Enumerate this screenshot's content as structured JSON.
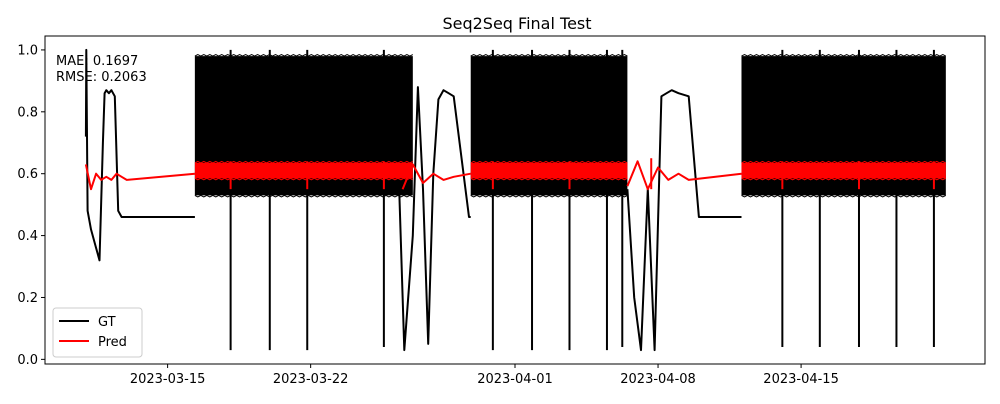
{
  "chart_data": {
    "type": "line",
    "title": "Seq2Seq Final Test",
    "xlabel": "",
    "ylabel": "",
    "xlim": [
      "2023-03-09",
      "2023-04-24"
    ],
    "ylim": [
      -0.015,
      1.045
    ],
    "xticks": [
      "2023-03-15",
      "2023-03-22",
      "2023-04-01",
      "2023-04-08",
      "2023-04-15"
    ],
    "yticks": [
      0.0,
      0.2,
      0.4,
      0.6,
      0.8,
      1.0
    ],
    "ytick_labels": [
      "0.0",
      "0.2",
      "0.4",
      "0.6",
      "0.8",
      "1.0"
    ],
    "grid": false,
    "legend": {
      "position": "lower-left",
      "entries": [
        "GT",
        "Pred"
      ]
    },
    "annotation": [
      "MAE: 0.1697",
      "RMSE: 0.2063"
    ],
    "series": [
      {
        "name": "GT",
        "color": "#000000",
        "segments": [
          {
            "kind": "line",
            "x": [
              "2023-03-11T00:00",
              "2023-03-11T00:30",
              "2023-03-11T02:00",
              "2023-03-11T06:00",
              "2023-03-11T12:00",
              "2023-03-11T16:00",
              "2023-03-11T20:00",
              "2023-03-11T22:00",
              "2023-03-12T00:00",
              "2023-03-12T03:00",
              "2023-03-12T06:00",
              "2023-03-12T10:00",
              "2023-03-12T14:00",
              "2023-03-12T18:00",
              "2023-03-12T22:00",
              "2023-03-13T00:00",
              "2023-03-14T00:00",
              "2023-03-15T00:00",
              "2023-03-16T00:00",
              "2023-03-16T08:00"
            ],
            "y": [
              0.72,
              1.0,
              0.48,
              0.42,
              0.36,
              0.32,
              0.7,
              0.86,
              0.87,
              0.86,
              0.87,
              0.85,
              0.48,
              0.46,
              0.46,
              0.46,
              0.46,
              0.46,
              0.46,
              0.46
            ]
          },
          {
            "kind": "band",
            "x_start": "2023-03-16T08:00",
            "x_end": "2023-03-27T00:00",
            "y_low": 0.53,
            "y_high": 0.98
          },
          {
            "kind": "line",
            "x": [
              "2023-03-25T18:00",
              "2023-03-26T00:00",
              "2023-03-26T08:00",
              "2023-03-26T14:00",
              "2023-03-27T00:00",
              "2023-03-27T06:00",
              "2023-03-27T12:00",
              "2023-03-27T18:00",
              "2023-03-28T00:00",
              "2023-03-28T06:00",
              "2023-03-28T12:00",
              "2023-03-28T18:00",
              "2023-03-29T00:00",
              "2023-03-29T18:00",
              "2023-03-29T20:00"
            ],
            "y": [
              0.55,
              0.98,
              0.55,
              0.03,
              0.4,
              0.88,
              0.55,
              0.05,
              0.6,
              0.84,
              0.87,
              0.86,
              0.85,
              0.46,
              0.46
            ]
          },
          {
            "kind": "band",
            "x_start": "2023-03-29T20:00",
            "x_end": "2023-04-06T12:00",
            "y_low": 0.53,
            "y_high": 0.98
          },
          {
            "kind": "line",
            "x": [
              "2023-04-06T12:00",
              "2023-04-06T20:00",
              "2023-04-07T04:00",
              "2023-04-07T12:00",
              "2023-04-07T20:00",
              "2023-04-08T04:00",
              "2023-04-08T10:00",
              "2023-04-08T16:00",
              "2023-04-09T00:00",
              "2023-04-09T12:00",
              "2023-04-10T00:00",
              "2023-04-11T00:00",
              "2023-04-12T00:00",
              "2023-04-12T02:00"
            ],
            "y": [
              0.55,
              0.2,
              0.03,
              0.55,
              0.03,
              0.85,
              0.86,
              0.87,
              0.86,
              0.85,
              0.46,
              0.46,
              0.46,
              0.46
            ]
          },
          {
            "kind": "band",
            "x_start": "2023-04-12T02:00",
            "x_end": "2023-04-22T02:00",
            "y_low": 0.53,
            "y_high": 0.98
          }
        ],
        "spikes": [
          {
            "x": "2023-03-18T02:00",
            "y_low": 0.03,
            "y_high": 1.0
          },
          {
            "x": "2023-03-20T00:00",
            "y_low": 0.03,
            "y_high": 1.0
          },
          {
            "x": "2023-03-21T20:00",
            "y_low": 0.03,
            "y_high": 1.0
          },
          {
            "x": "2023-03-25T14:00",
            "y_low": 0.04,
            "y_high": 1.0
          },
          {
            "x": "2023-03-30T22:00",
            "y_low": 0.03,
            "y_high": 1.0
          },
          {
            "x": "2023-04-01T20:00",
            "y_low": 0.03,
            "y_high": 1.0
          },
          {
            "x": "2023-04-03T16:00",
            "y_low": 0.03,
            "y_high": 1.0
          },
          {
            "x": "2023-04-05T12:00",
            "y_low": 0.03,
            "y_high": 1.0
          },
          {
            "x": "2023-04-06T06:00",
            "y_low": 0.04,
            "y_high": 1.0
          },
          {
            "x": "2023-04-14T02:00",
            "y_low": 0.04,
            "y_high": 1.0
          },
          {
            "x": "2023-04-15T22:00",
            "y_low": 0.04,
            "y_high": 1.0
          },
          {
            "x": "2023-04-17T20:00",
            "y_low": 0.04,
            "y_high": 1.0
          },
          {
            "x": "2023-04-19T16:00",
            "y_low": 0.04,
            "y_high": 1.0
          },
          {
            "x": "2023-04-21T12:00",
            "y_low": 0.04,
            "y_high": 1.0
          }
        ]
      },
      {
        "name": "Pred",
        "color": "#ff0000",
        "segments": [
          {
            "kind": "line",
            "x": [
              "2023-03-11T00:00",
              "2023-03-11T06:00",
              "2023-03-11T12:00",
              "2023-03-11T18:00",
              "2023-03-12T00:00",
              "2023-03-12T06:00",
              "2023-03-12T12:00",
              "2023-03-12T18:00",
              "2023-03-13T00:00",
              "2023-03-16T08:00"
            ],
            "y": [
              0.63,
              0.55,
              0.6,
              0.58,
              0.59,
              0.58,
              0.6,
              0.59,
              0.58,
              0.6
            ]
          },
          {
            "kind": "band",
            "x_start": "2023-03-16T08:00",
            "x_end": "2023-03-27T00:00",
            "y_low": 0.585,
            "y_high": 0.635
          },
          {
            "kind": "line",
            "x": [
              "2023-03-26T12:00",
              "2023-03-27T00:00",
              "2023-03-27T12:00",
              "2023-03-28T00:00",
              "2023-03-28T12:00",
              "2023-03-29T00:00",
              "2023-03-29T20:00"
            ],
            "y": [
              0.55,
              0.63,
              0.57,
              0.6,
              0.58,
              0.59,
              0.6
            ]
          },
          {
            "kind": "band",
            "x_start": "2023-03-29T20:00",
            "x_end": "2023-04-06T12:00",
            "y_low": 0.585,
            "y_high": 0.635
          },
          {
            "kind": "line",
            "x": [
              "2023-04-06T12:00",
              "2023-04-07T00:00",
              "2023-04-07T12:00",
              "2023-04-08T00:00",
              "2023-04-08T12:00",
              "2023-04-09T00:00",
              "2023-04-09T12:00",
              "2023-04-12T02:00"
            ],
            "y": [
              0.56,
              0.64,
              0.55,
              0.62,
              0.58,
              0.6,
              0.58,
              0.6
            ]
          },
          {
            "kind": "band",
            "x_start": "2023-04-12T02:00",
            "x_end": "2023-04-22T02:00",
            "y_low": 0.585,
            "y_high": 0.635
          }
        ],
        "spikes": [
          {
            "x": "2023-03-18T02:00",
            "y_low": 0.55,
            "y_high": 0.64
          },
          {
            "x": "2023-03-21T20:00",
            "y_low": 0.55,
            "y_high": 0.64
          },
          {
            "x": "2023-03-25T14:00",
            "y_low": 0.55,
            "y_high": 0.64
          },
          {
            "x": "2023-03-30T22:00",
            "y_low": 0.55,
            "y_high": 0.64
          },
          {
            "x": "2023-04-03T16:00",
            "y_low": 0.55,
            "y_high": 0.64
          },
          {
            "x": "2023-04-07T16:00",
            "y_low": 0.55,
            "y_high": 0.65
          },
          {
            "x": "2023-04-14T02:00",
            "y_low": 0.55,
            "y_high": 0.64
          },
          {
            "x": "2023-04-17T20:00",
            "y_low": 0.55,
            "y_high": 0.64
          },
          {
            "x": "2023-04-21T12:00",
            "y_low": 0.55,
            "y_high": 0.64
          }
        ]
      }
    ]
  }
}
